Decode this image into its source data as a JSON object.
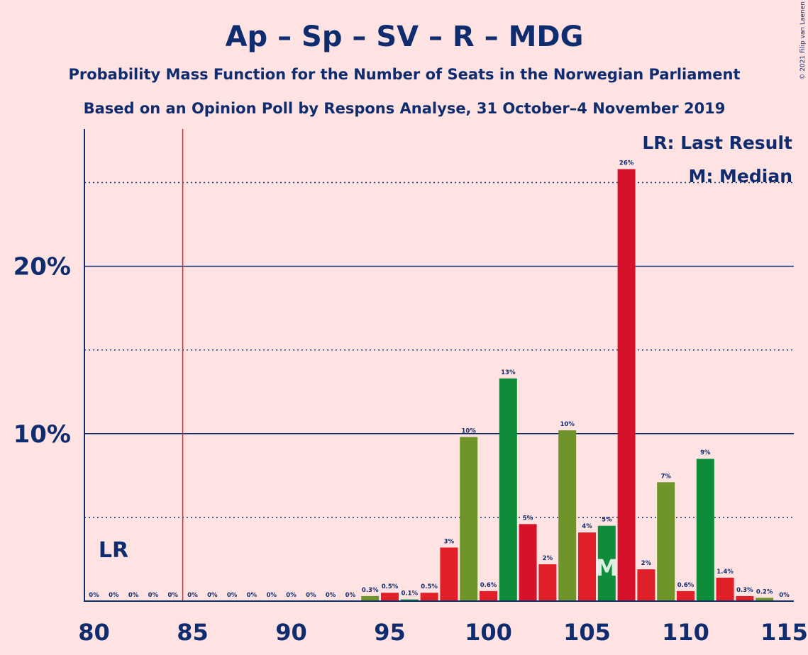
{
  "title": "Ap – Sp – SV – R – MDG",
  "subtitle1": "Probability Mass Function for the Number of Seats in the Norwegian Parliament",
  "subtitle2": "Based on an Opinion Poll by Respons Analyse, 31 October–4 November 2019",
  "copyright": "© 2021 Filip van Laenen",
  "legend": {
    "lr": "LR: Last Result",
    "m": "M: Median"
  },
  "markers": {
    "lr_label": "LR",
    "lr_seat": 85,
    "median_label": "M",
    "median_seat": 106
  },
  "colors": {
    "background": "#FFE3E3",
    "text": "#0E2C6E",
    "red": "#E01F28",
    "dark_red": "#D4132B",
    "green": "#0F8C3A",
    "olive": "#6E942A",
    "last_result_line": "#E01F28"
  },
  "chart_data": {
    "type": "bar",
    "xlim": [
      80,
      115
    ],
    "ylim": [
      0,
      28
    ],
    "x_ticks": [
      80,
      85,
      90,
      95,
      100,
      105,
      110,
      115
    ],
    "y_ticks_labeled": [
      {
        "value": 10,
        "label": "10%"
      },
      {
        "value": 20,
        "label": "20%"
      }
    ],
    "y_gridlines_solid": [
      10,
      20
    ],
    "y_gridlines_dotted": [
      5,
      15,
      25
    ],
    "bars": [
      {
        "x": 80,
        "value": 0,
        "label": "0%",
        "color": "olive"
      },
      {
        "x": 81,
        "value": 0,
        "label": "0%",
        "color": "red"
      },
      {
        "x": 82,
        "value": 0,
        "label": "0%",
        "color": "red"
      },
      {
        "x": 83,
        "value": 0,
        "label": "0%",
        "color": "red"
      },
      {
        "x": 84,
        "value": 0,
        "label": "0%",
        "color": "red"
      },
      {
        "x": 85,
        "value": 0,
        "label": "0%",
        "color": "red"
      },
      {
        "x": 86,
        "value": 0,
        "label": "0%",
        "color": "red"
      },
      {
        "x": 87,
        "value": 0,
        "label": "0%",
        "color": "red"
      },
      {
        "x": 88,
        "value": 0,
        "label": "0%",
        "color": "red"
      },
      {
        "x": 89,
        "value": 0,
        "label": "0%",
        "color": "red"
      },
      {
        "x": 90,
        "value": 0,
        "label": "0%",
        "color": "red"
      },
      {
        "x": 91,
        "value": 0,
        "label": "0%",
        "color": "red"
      },
      {
        "x": 92,
        "value": 0,
        "label": "0%",
        "color": "red"
      },
      {
        "x": 93,
        "value": 0,
        "label": "0%",
        "color": "red"
      },
      {
        "x": 94,
        "value": 0.3,
        "label": "0.3%",
        "color": "olive"
      },
      {
        "x": 95,
        "value": 0.5,
        "label": "0.5%",
        "color": "red"
      },
      {
        "x": 96,
        "value": 0.1,
        "label": "0.1%",
        "color": "green"
      },
      {
        "x": 97,
        "value": 0.5,
        "label": "0.5%",
        "color": "red"
      },
      {
        "x": 98,
        "value": 3.2,
        "label": "3%",
        "color": "red"
      },
      {
        "x": 99,
        "value": 9.8,
        "label": "10%",
        "color": "olive"
      },
      {
        "x": 100,
        "value": 0.6,
        "label": "0.6%",
        "color": "red"
      },
      {
        "x": 101,
        "value": 13.3,
        "label": "13%",
        "color": "green"
      },
      {
        "x": 102,
        "value": 4.6,
        "label": "5%",
        "color": "dark_red"
      },
      {
        "x": 103,
        "value": 2.2,
        "label": "2%",
        "color": "red"
      },
      {
        "x": 104,
        "value": 10.2,
        "label": "10%",
        "color": "olive"
      },
      {
        "x": 105,
        "value": 4.1,
        "label": "4%",
        "color": "red"
      },
      {
        "x": 106,
        "value": 4.5,
        "label": "5%",
        "color": "green"
      },
      {
        "x": 107,
        "value": 25.8,
        "label": "26%",
        "color": "dark_red"
      },
      {
        "x": 108,
        "value": 1.9,
        "label": "2%",
        "color": "red"
      },
      {
        "x": 109,
        "value": 7.1,
        "label": "7%",
        "color": "olive"
      },
      {
        "x": 110,
        "value": 0.6,
        "label": "0.6%",
        "color": "red"
      },
      {
        "x": 111,
        "value": 8.5,
        "label": "9%",
        "color": "green"
      },
      {
        "x": 112,
        "value": 1.4,
        "label": "1.4%",
        "color": "red"
      },
      {
        "x": 113,
        "value": 0.3,
        "label": "0.3%",
        "color": "red"
      },
      {
        "x": 114,
        "value": 0.2,
        "label": "0.2%",
        "color": "olive"
      },
      {
        "x": 115,
        "value": 0,
        "label": "0%",
        "color": "red"
      }
    ]
  }
}
